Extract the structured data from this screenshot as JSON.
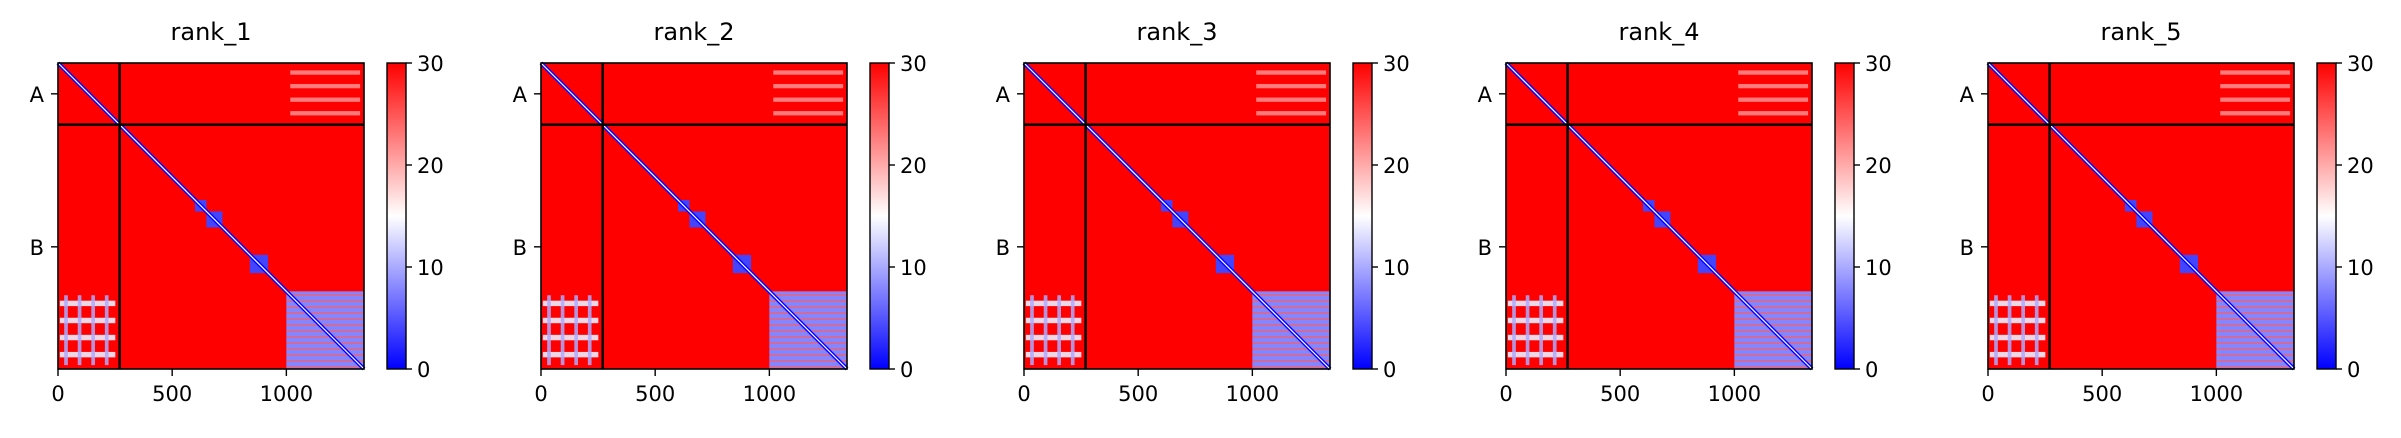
{
  "chart_data": [
    {
      "type": "heatmap",
      "title": "rank_1"
    },
    {
      "type": "heatmap",
      "title": "rank_2"
    },
    {
      "type": "heatmap",
      "title": "rank_3"
    },
    {
      "type": "heatmap",
      "title": "rank_4"
    },
    {
      "type": "heatmap",
      "title": "rank_5"
    }
  ],
  "shared": {
    "matrix_size": 1340,
    "chains": [
      {
        "label": "A",
        "start": 0,
        "end": 270
      },
      {
        "label": "B",
        "start": 270,
        "end": 1340
      }
    ],
    "chain_boundary": 270,
    "x_ticks": [
      0,
      500,
      1000
    ],
    "x_tick_labels": [
      "0",
      "500",
      "1000"
    ],
    "y_tick_labels": [
      "A",
      "B"
    ],
    "colorbar": {
      "min": 0,
      "max": 30,
      "ticks": [
        0,
        10,
        20,
        30
      ],
      "tick_labels": [
        "0",
        "10",
        "20",
        "30"
      ],
      "colormap": "bwr",
      "colors": {
        "low": "#0000ff",
        "mid": "#ffffff",
        "high": "#ff0000"
      }
    },
    "low_error_blocks": [
      {
        "x": [
          600,
          650
        ],
        "y": [
          600,
          650
        ]
      },
      {
        "x": [
          650,
          720
        ],
        "y": [
          650,
          720
        ]
      },
      {
        "x": [
          840,
          920
        ],
        "y": [
          840,
          920
        ]
      },
      {
        "x": [
          1000,
          1340
        ],
        "y": [
          1000,
          1340
        ]
      }
    ],
    "off_diagonal_features": [
      {
        "x": [
          1000,
          1340
        ],
        "y": [
          0,
          270
        ],
        "level": 22
      },
      {
        "x": [
          0,
          270
        ],
        "y": [
          1000,
          1340
        ],
        "level": 14
      }
    ]
  }
}
